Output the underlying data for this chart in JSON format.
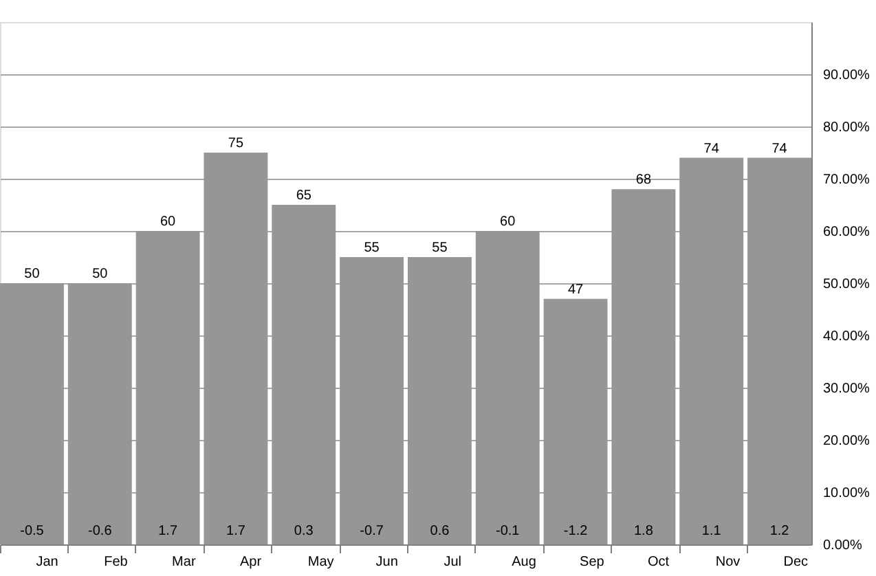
{
  "chart_data": {
    "type": "bar",
    "categories": [
      "Jan",
      "Feb",
      "Mar",
      "Apr",
      "May",
      "Jun",
      "Jul",
      "Aug",
      "Sep",
      "Oct",
      "Nov",
      "Dec"
    ],
    "values": [
      50,
      50,
      60,
      75,
      65,
      55,
      55,
      60,
      47,
      68,
      74,
      74
    ],
    "color": "#969696",
    "data_labels": true,
    "ylim": [
      0,
      100
    ],
    "yticks": [
      {
        "value": 0,
        "label": "0.00%"
      },
      {
        "value": 10,
        "label": "10.00%"
      },
      {
        "value": 20,
        "label": "20.00%"
      },
      {
        "value": 30,
        "label": "30.00%"
      },
      {
        "value": 40,
        "label": "40.00%"
      },
      {
        "value": 50,
        "label": "50.00%"
      },
      {
        "value": 60,
        "label": "60.00%"
      },
      {
        "value": 70,
        "label": "70.00%"
      },
      {
        "value": 80,
        "label": "80.00%"
      },
      {
        "value": 90,
        "label": "90.00%"
      }
    ],
    "grid": "y",
    "annotations": [
      "-0.5",
      "-0.6",
      "1.7",
      "1.7",
      "0.3",
      "-0.7",
      "0.6",
      "-0.1",
      "-1.2",
      "1.8",
      "1.1",
      "1.2"
    ]
  }
}
